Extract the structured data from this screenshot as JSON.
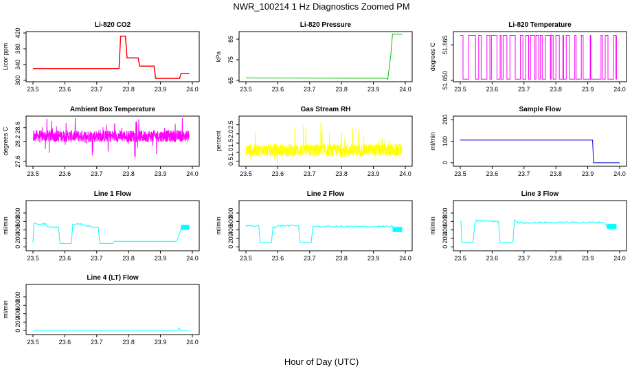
{
  "main_title": "NWR_100214  1 Hz Diagnostics Zoomed PM",
  "x_axis_label": "Hour of Day (UTC)",
  "chart_data": [
    {
      "type": "line",
      "title": "Li-820 CO2",
      "ylabel": "Licor ppm",
      "color": "#ff0000",
      "xlim": [
        23.5,
        24.0
      ],
      "ylim": [
        300,
        420
      ],
      "xticks": [
        "23.5",
        "23.6",
        "23.7",
        "23.8",
        "23.9",
        "24.0"
      ],
      "yticks": [
        "300",
        "340",
        "380",
        "420"
      ],
      "series": [
        {
          "x": [
            23.5,
            23.77,
            23.775,
            23.79,
            23.795,
            23.83,
            23.835,
            23.86,
            23.865,
            23.88,
            23.885,
            23.92,
            23.94,
            23.945,
            23.96,
            23.965,
            23.99
          ],
          "y": [
            330,
            330,
            412,
            412,
            357,
            357,
            336,
            336,
            336,
            336,
            305,
            305,
            305,
            305,
            305,
            318,
            318
          ]
        }
      ]
    },
    {
      "type": "line",
      "title": "Li-820 Pressure",
      "ylabel": "kPa",
      "color": "#00c000",
      "xlim": [
        23.5,
        24.0
      ],
      "ylim": [
        65,
        88
      ],
      "xticks": [
        "23.5",
        "23.6",
        "23.7",
        "23.8",
        "23.9",
        "24.0"
      ],
      "yticks": [
        "65",
        "75",
        "85"
      ],
      "series": [
        {
          "x": [
            23.5,
            23.94,
            23.945,
            23.955,
            23.96,
            23.99
          ],
          "y": [
            66.2,
            66,
            65.5,
            78,
            87.5,
            87.3
          ]
        }
      ]
    },
    {
      "type": "line",
      "title": "Li-820 Temperature",
      "ylabel": "degrees C",
      "color": "#ff00ff",
      "xlim": [
        23.5,
        24.0
      ],
      "ylim": [
        51.65,
        51.67
      ],
      "xticks": [
        "23.5",
        "23.6",
        "23.7",
        "23.8",
        "23.9",
        "24.0"
      ],
      "yticks": [
        "51.650",
        "51.665"
      ],
      "series": [
        {
          "x": [
            23.5,
            24.0
          ],
          "y": [
            51.65,
            51.67
          ]
        }
      ]
    },
    {
      "type": "line",
      "title": "Ambient Box Temperature",
      "ylabel": "degrees C",
      "color": "#ff00ff",
      "xlim": [
        23.5,
        24.0
      ],
      "ylim": [
        27.5,
        28.9
      ],
      "xticks": [
        "23.5",
        "23.6",
        "23.7",
        "23.8",
        "23.9",
        "24.0"
      ],
      "yticks": [
        "27.6",
        "28.2",
        "28.6"
      ],
      "series": [
        {
          "x": [
            23.5,
            24.0
          ],
          "y": [
            28.35,
            28.35
          ]
        }
      ]
    },
    {
      "type": "line",
      "title": "Gas Stream RH",
      "ylabel": "percent",
      "color": "#ffff00",
      "xlim": [
        23.5,
        24.0
      ],
      "ylim": [
        0.3,
        2.9
      ],
      "xticks": [
        "23.5",
        "23.6",
        "23.7",
        "23.8",
        "23.9",
        "24.0"
      ],
      "yticks": [
        "0.5",
        "1.0",
        "1.5",
        "2.0",
        "2.5"
      ],
      "series": [
        {
          "x": [
            23.5,
            24.0
          ],
          "y": [
            1.1,
            1.1
          ]
        }
      ]
    },
    {
      "type": "line",
      "title": "Sample Flow",
      "ylabel": "ml/min",
      "color": "#0000cc",
      "xlim": [
        23.5,
        24.0
      ],
      "ylim": [
        -10,
        210
      ],
      "xticks": [
        "23.5",
        "23.6",
        "23.7",
        "23.8",
        "23.9",
        "24.0"
      ],
      "yticks": [
        "0",
        "100",
        "200"
      ],
      "series": [
        {
          "x": [
            23.5,
            23.915,
            23.918,
            24.0
          ],
          "y": [
            105,
            105,
            0,
            0
          ]
        }
      ]
    },
    {
      "type": "line",
      "title": "Line 1 Flow",
      "ylabel": "ml/min",
      "color": "#00ffff",
      "xlim": [
        23.5,
        24.0
      ],
      "ylim": [
        -60,
        1060
      ],
      "xticks": [
        "23.5",
        "23.6",
        "23.7",
        "23.8",
        "23.9",
        "24.0"
      ],
      "yticks": [
        "0",
        "200",
        "400",
        "600",
        "800"
      ],
      "series": [
        {
          "x": [
            23.5,
            23.503,
            23.54,
            23.545,
            23.58,
            23.585,
            23.62,
            23.625,
            23.65,
            23.695,
            23.705,
            23.71,
            23.75,
            23.755,
            23.95,
            23.96,
            23.965,
            23.99
          ],
          "y": [
            100,
            540,
            540,
            470,
            470,
            80,
            80,
            530,
            530,
            460,
            460,
            80,
            80,
            130,
            130,
            300,
            460,
            460
          ]
        }
      ]
    },
    {
      "type": "line",
      "title": "Line 2 Flow",
      "ylabel": "ml/min",
      "color": "#00ffff",
      "xlim": [
        23.5,
        24.0
      ],
      "ylim": [
        -60,
        1060
      ],
      "xticks": [
        "23.5",
        "23.6",
        "23.7",
        "23.8",
        "23.9",
        "24.0"
      ],
      "yticks": [
        "0",
        "200",
        "400",
        "600",
        "800"
      ],
      "series": [
        {
          "x": [
            23.5,
            23.54,
            23.545,
            23.58,
            23.585,
            23.59,
            23.6,
            23.665,
            23.67,
            23.705,
            23.71,
            23.96,
            23.97,
            23.99
          ],
          "y": [
            500,
            500,
            100,
            100,
            480,
            440,
            500,
            500,
            100,
            100,
            480,
            480,
            410,
            410
          ]
        }
      ]
    },
    {
      "type": "line",
      "title": "Line 3 Flow",
      "ylabel": "ml/min",
      "color": "#00ffff",
      "xlim": [
        23.5,
        24.0
      ],
      "ylim": [
        -60,
        1060
      ],
      "xticks": [
        "23.5",
        "23.6",
        "23.7",
        "23.8",
        "23.9",
        "24.0"
      ],
      "yticks": [
        "0",
        "200",
        "400",
        "600",
        "800"
      ],
      "series": [
        {
          "x": [
            23.5,
            23.502,
            23.505,
            23.54,
            23.545,
            23.55,
            23.62,
            23.625,
            23.665,
            23.67,
            23.68,
            23.95,
            23.96,
            23.99
          ],
          "y": [
            600,
            600,
            100,
            100,
            520,
            620,
            600,
            100,
            100,
            640,
            570,
            580,
            480,
            480
          ]
        }
      ]
    },
    {
      "type": "line",
      "title": "Line 4 (LT) Flow",
      "ylabel": "ml/min",
      "color": "#00ffff",
      "xlim": [
        23.5,
        24.0
      ],
      "ylim": [
        -60,
        1060
      ],
      "xticks": [
        "23.5",
        "23.6",
        "23.7",
        "23.8",
        "23.9",
        "24.0"
      ],
      "yticks": [
        "0",
        "200",
        "400",
        "600",
        "800"
      ],
      "series": [
        {
          "x": [
            23.5,
            23.955,
            23.958,
            23.962,
            23.99
          ],
          "y": [
            10,
            10,
            60,
            10,
            10
          ]
        }
      ]
    }
  ]
}
